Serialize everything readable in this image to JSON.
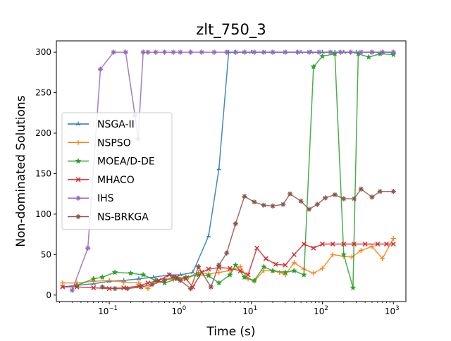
{
  "chart_data": {
    "type": "line",
    "title": "zlt_750_3",
    "xlabel": "Time (s)",
    "ylabel": "Non-dominated Solutions",
    "xscale": "log",
    "xlim": [
      0.018,
      1500
    ],
    "ylim": [
      -8,
      314
    ],
    "x_ticks": [
      {
        "value": 0.1,
        "base": "10",
        "exp": "−1"
      },
      {
        "value": 1,
        "base": "10",
        "exp": "0"
      },
      {
        "value": 10,
        "base": "10",
        "exp": "1"
      },
      {
        "value": 100,
        "base": "10",
        "exp": "2"
      },
      {
        "value": 1000,
        "base": "10",
        "exp": "3"
      }
    ],
    "y_ticks": [
      0,
      50,
      100,
      150,
      200,
      250,
      300
    ],
    "grid": false,
    "legend_position": "center-left",
    "series": [
      {
        "name": "NSGA-II",
        "color": "#1f77b4",
        "marker": "tri",
        "x": [
          0.022,
          0.035,
          0.06,
          0.1,
          0.16,
          0.26,
          0.42,
          0.7,
          1.0,
          1.5,
          2.5,
          3.5,
          4.8,
          6,
          8,
          10,
          15,
          20,
          30,
          50,
          70,
          100,
          150,
          200,
          300,
          500,
          700,
          1000
        ],
        "y": [
          10,
          12,
          14,
          17,
          18,
          20,
          22,
          25,
          25,
          28,
          73,
          156,
          300,
          300,
          300,
          300,
          300,
          300,
          300,
          300,
          300,
          300,
          300,
          300,
          300,
          300,
          300,
          300
        ]
      },
      {
        "name": "NSPSO",
        "color": "#ff7f0e",
        "marker": "plus",
        "x": [
          0.022,
          0.035,
          0.06,
          0.1,
          0.16,
          0.26,
          0.35,
          0.45,
          0.6,
          0.8,
          1.0,
          1.3,
          1.8,
          2.5,
          3.5,
          5,
          7,
          9,
          11,
          15,
          20,
          25,
          30,
          40,
          55,
          75,
          100,
          140,
          200,
          260,
          350,
          500,
          700,
          1000
        ],
        "y": [
          15,
          15,
          17,
          18,
          16,
          15,
          8,
          18,
          20,
          19,
          18,
          22,
          28,
          26,
          28,
          30,
          35,
          20,
          17,
          30,
          30,
          28,
          25,
          40,
          32,
          27,
          33,
          50,
          48,
          47,
          55,
          60,
          45,
          70
        ]
      },
      {
        "name": "MOEA/D-DE",
        "color": "#2ca02c",
        "marker": "star",
        "x": [
          0.035,
          0.06,
          0.08,
          0.12,
          0.2,
          0.3,
          0.45,
          0.6,
          0.9,
          1.2,
          1.8,
          2.5,
          3.5,
          5,
          6,
          8,
          11,
          15,
          20,
          30,
          40,
          55,
          75,
          100,
          150,
          200,
          270,
          320,
          450,
          650,
          1000
        ],
        "y": [
          12,
          20,
          22,
          28,
          27,
          25,
          18,
          15,
          20,
          22,
          25,
          24,
          15,
          25,
          37,
          22,
          18,
          35,
          30,
          28,
          30,
          25,
          282,
          295,
          298,
          50,
          9,
          298,
          294,
          298,
          297
        ]
      },
      {
        "name": "MHACO",
        "color": "#d62728",
        "marker": "x",
        "x": [
          0.022,
          0.035,
          0.06,
          0.1,
          0.16,
          0.26,
          0.35,
          0.5,
          0.7,
          0.9,
          1.2,
          1.5,
          2,
          2.5,
          3.5,
          5,
          7,
          9,
          12,
          16,
          22,
          30,
          40,
          55,
          75,
          100,
          140,
          200,
          280,
          400,
          600,
          800,
          1000
        ],
        "y": [
          10,
          10,
          9,
          8,
          9,
          11,
          15,
          18,
          25,
          22,
          20,
          10,
          28,
          32,
          34,
          33,
          30,
          25,
          58,
          45,
          38,
          37,
          50,
          63,
          58,
          63,
          63,
          63,
          63,
          63,
          63,
          63,
          63
        ]
      },
      {
        "name": "IHS",
        "color": "#9467bd",
        "marker": "asterisk",
        "x": [
          0.03,
          0.05,
          0.075,
          0.115,
          0.17,
          0.23,
          0.255,
          0.3,
          0.35,
          0.45,
          0.6,
          0.8,
          1.0,
          1.4,
          2,
          3,
          4.5,
          6,
          8,
          11,
          15,
          20,
          30,
          45,
          65,
          90,
          130,
          180,
          250,
          350,
          500,
          700,
          1000
        ],
        "y": [
          6,
          58,
          279,
          300,
          300,
          222,
          193,
          300,
          300,
          300,
          300,
          300,
          300,
          300,
          300,
          300,
          300,
          300,
          300,
          300,
          300,
          300,
          300,
          300,
          300,
          300,
          300,
          300,
          300,
          300,
          300,
          300,
          300
        ]
      },
      {
        "name": "NS-BRKGA",
        "color": "#8c564b",
        "marker": "asterisk",
        "x": [
          0.08,
          0.12,
          0.18,
          0.28,
          0.4,
          0.6,
          0.8,
          1.0,
          1.4,
          1.8,
          2.7,
          3.5,
          4.5,
          6,
          8,
          11,
          15,
          20,
          28,
          35,
          50,
          65,
          85,
          110,
          150,
          200,
          280,
          350,
          500,
          650,
          1000
        ],
        "y": [
          10,
          8,
          8,
          10,
          13,
          18,
          22,
          18,
          8,
          35,
          10,
          37,
          52,
          88,
          122,
          115,
          111,
          110,
          112,
          125,
          116,
          106,
          112,
          120,
          124,
          119,
          119,
          131,
          121,
          128,
          128
        ]
      }
    ]
  }
}
